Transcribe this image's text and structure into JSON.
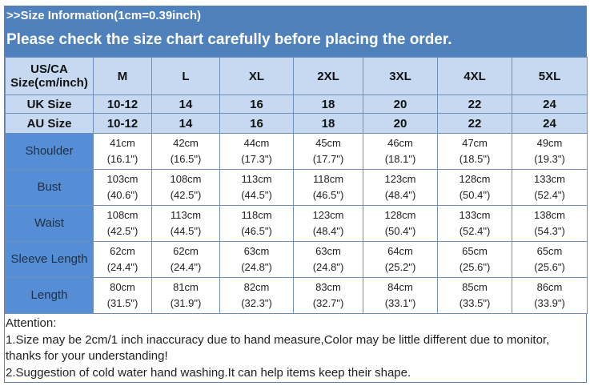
{
  "title": ">>Size  Information(1cm=0.39inch)",
  "subtitle": "Please check the size chart carefully before placing the order.",
  "header": {
    "corner_line1": "US/CA",
    "corner_line2": "Size(cm/inch)",
    "sizes": [
      "M",
      "L",
      "XL",
      "2XL",
      "3XL",
      "4XL",
      "5XL"
    ]
  },
  "uk": {
    "label": "UK Size",
    "values": [
      "10-12",
      "14",
      "16",
      "18",
      "20",
      "22",
      "24"
    ]
  },
  "au": {
    "label": "AU Size",
    "values": [
      "10-12",
      "14",
      "16",
      "18",
      "20",
      "22",
      "24"
    ]
  },
  "rows": [
    {
      "label": "Shoulder",
      "cm": [
        "41cm",
        "42cm",
        "44cm",
        "45cm",
        "46cm",
        "47cm",
        "49cm"
      ],
      "inch": [
        "(16.1\")",
        "(16.5\")",
        "(17.3\")",
        "(17.7\")",
        "(18.1\")",
        "(18.5\")",
        "(19.3\")"
      ]
    },
    {
      "label": "Bust",
      "cm": [
        "103cm",
        "108cm",
        "113cm",
        "118cm",
        "123cm",
        "128cm",
        "133cm"
      ],
      "inch": [
        "(40.6\")",
        "(42.5\")",
        "(44.5\")",
        "(46.5\")",
        "(48.4\")",
        "(50.4\")",
        "(52.4\")"
      ]
    },
    {
      "label": "Waist",
      "cm": [
        "108cm",
        "113cm",
        "118cm",
        "123cm",
        "128cm",
        "133cm",
        "138cm"
      ],
      "inch": [
        "(42.5\")",
        "(44.5\")",
        "(46.5\")",
        "(48.4\")",
        "(50.4\")",
        "(52.4\")",
        "(54.3\")"
      ]
    },
    {
      "label": "Sleeve Length",
      "cm": [
        "62cm",
        "62cm",
        "63cm",
        "63cm",
        "64cm",
        "65cm",
        "65cm"
      ],
      "inch": [
        "(24.4\")",
        "(24.4\")",
        "(24.8\")",
        "(24.8\")",
        "(25.2\")",
        "(25.6\")",
        "(25.6\")"
      ]
    },
    {
      "label": "Length",
      "cm": [
        "80cm",
        "81cm",
        "82cm",
        "83cm",
        "84cm",
        "85cm",
        "86cm"
      ],
      "inch": [
        "(31.5\")",
        "(31.9\")",
        "(32.3\")",
        "(32.7\")",
        "(33.1\")",
        "(33.5\")",
        "(33.9\")"
      ]
    }
  ],
  "attention": [
    "Attention:",
    "1.Size may be 2cm/1  inch inaccuracy due to hand measure,Color may be little different due to monitor,",
    "thanks for your understanding!",
    "2.Suggestion of cold water hand washing.It can help items keep their shape."
  ],
  "colors": {
    "title_bg": "#4f81bd",
    "header_bg": "#c6d9f1",
    "label_bg": "#558ed5"
  }
}
